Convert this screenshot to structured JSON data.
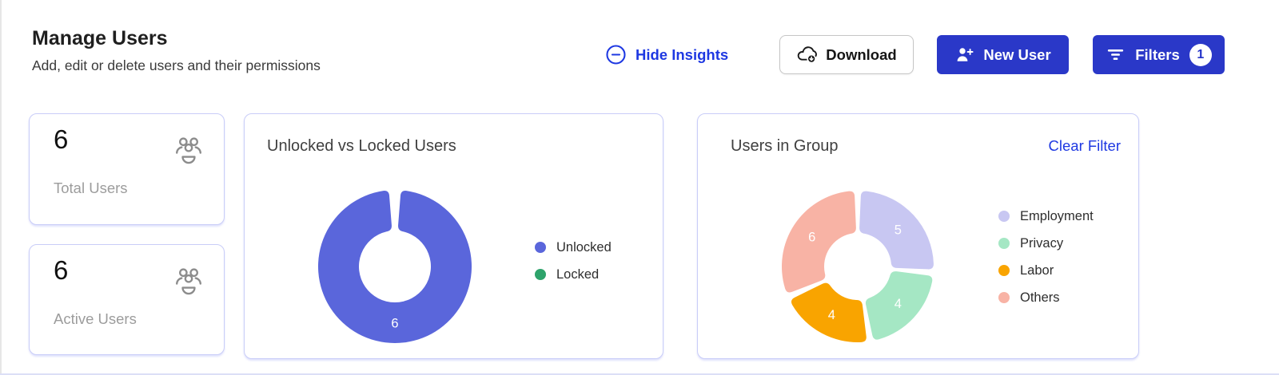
{
  "header": {
    "title": "Manage Users",
    "subtitle": "Add, edit or delete users and their permissions",
    "hide_insights_label": "Hide Insights",
    "download_label": "Download",
    "new_user_label": "New User",
    "filters_label": "Filters",
    "filters_badge": "1"
  },
  "stats": [
    {
      "value": "6",
      "label": "Total Users",
      "icon": "users-group-icon"
    },
    {
      "value": "6",
      "label": "Active Users",
      "icon": "users-group-icon"
    }
  ],
  "colors": {
    "button_blue": "#2a38c8",
    "link_blue": "#1e38e2",
    "card_border": "#c9cdf8",
    "unlocked_blue": "#5a66db",
    "locked_green": "#2ea36b",
    "employment_lavender": "#c8c7f2",
    "privacy_mint": "#a5e7c4",
    "labor_orange": "#f9a400",
    "others_salmon": "#f8b3a5"
  },
  "chart_data": [
    {
      "type": "pie",
      "donut": true,
      "title": "Unlocked vs Locked Users",
      "categories": [
        "Unlocked",
        "Locked"
      ],
      "values": [
        6,
        0
      ],
      "colors": [
        "#5a66db",
        "#2ea36b"
      ],
      "value_labels_shown": true,
      "legend_position": "right"
    },
    {
      "type": "pie",
      "donut": true,
      "title": "Users in Group",
      "action_label": "Clear Filter",
      "categories": [
        "Employment",
        "Privacy",
        "Labor",
        "Others"
      ],
      "values": [
        5,
        4,
        4,
        6
      ],
      "colors": [
        "#c8c7f2",
        "#a5e7c4",
        "#f9a400",
        "#f8b3a5"
      ],
      "value_labels_shown": true,
      "legend_position": "right"
    }
  ]
}
